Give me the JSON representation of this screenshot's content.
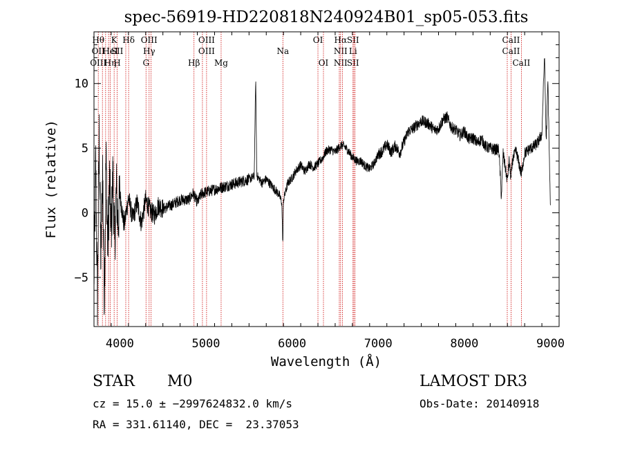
{
  "chart_data": {
    "type": "line",
    "title": "spec-56919-HD220818N240924B01_sp05-053.fits",
    "xlabel": "Wavelength (Å)",
    "ylabel": "Flux (relative)",
    "xlim": [
      3700,
      9100
    ],
    "ylim": [
      -8.8,
      14
    ],
    "xticks": [
      4000,
      5000,
      6000,
      7000,
      8000,
      9000
    ],
    "yticks": [
      -5,
      0,
      5,
      10
    ],
    "grid": false,
    "series": [
      {
        "x": [
          3700,
          3720,
          3740,
          3760,
          3780,
          3800,
          3820,
          3840,
          3860,
          3880,
          3900,
          3920,
          3940,
          3960,
          3980,
          4000,
          4050,
          4100,
          4150,
          4200,
          4250,
          4300,
          4350,
          4400,
          4450,
          4500,
          4600,
          4700,
          4800,
          4850,
          4900,
          4950,
          5000,
          5100,
          5200,
          5300,
          5400,
          5500,
          5560,
          5577,
          5590,
          5650,
          5700,
          5750,
          5800,
          5850,
          5880,
          5893,
          5900,
          5950,
          6000,
          6050,
          6100,
          6150,
          6200,
          6250,
          6300,
          6350,
          6400,
          6450,
          6500,
          6563,
          6600,
          6650,
          6700,
          6750,
          6800,
          6850,
          6900,
          6950,
          7000,
          7050,
          7100,
          7150,
          7200,
          7250,
          7300,
          7350,
          7400,
          7450,
          7500,
          7550,
          7600,
          7650,
          7700,
          7750,
          7800,
          7850,
          7900,
          7950,
          8000,
          8050,
          8100,
          8150,
          8200,
          8250,
          8300,
          8350,
          8400,
          8430,
          8450,
          8498,
          8520,
          8542,
          8560,
          8600,
          8662,
          8700,
          8750,
          8800,
          8850,
          8900,
          8930,
          8950,
          8970,
          8990,
          9000
        ],
        "y": [
          -5.5,
          4.0,
          -7.0,
          6.0,
          -4.0,
          3.5,
          -6.5,
          4.5,
          -3.0,
          2.5,
          -1.5,
          3.0,
          -2.5,
          2.0,
          -1.0,
          1.5,
          -1.0,
          1.2,
          -0.5,
          0.8,
          -0.8,
          1.0,
          0.2,
          -0.2,
          0.6,
          0.3,
          0.6,
          1.0,
          1.0,
          1.5,
          0.8,
          1.5,
          1.6,
          1.8,
          2.0,
          2.2,
          2.4,
          2.6,
          2.8,
          10.5,
          2.9,
          2.3,
          2.6,
          2.2,
          1.8,
          1.4,
          0.8,
          -2.5,
          1.0,
          2.3,
          2.7,
          3.3,
          3.7,
          3.2,
          3.8,
          3.5,
          3.8,
          4.2,
          4.8,
          4.9,
          4.7,
          5.2,
          5.2,
          4.8,
          4.3,
          4.0,
          4.0,
          3.6,
          3.4,
          3.8,
          4.5,
          4.8,
          5.3,
          4.7,
          5.2,
          4.6,
          5.5,
          6.3,
          6.5,
          6.8,
          7.1,
          7.0,
          6.8,
          6.4,
          6.5,
          7.2,
          7.4,
          6.6,
          6.4,
          6.0,
          6.3,
          5.7,
          5.8,
          5.4,
          5.7,
          5.1,
          5.0,
          4.9,
          4.9,
          1.2,
          4.6,
          2.5,
          4.0,
          2.6,
          4.1,
          4.8,
          3.0,
          4.6,
          4.9,
          5.1,
          5.4,
          6.1,
          12.2,
          5.5,
          10.2,
          3.2,
          0.2
        ]
      }
    ],
    "line_markers": [
      {
        "w": 3750,
        "labels": [
          "Hθ",
          "OII",
          "OIII"
        ]
      },
      {
        "w": 3798,
        "labels": []
      },
      {
        "w": 3835,
        "labels": []
      },
      {
        "w": 3869,
        "labels": []
      },
      {
        "w": 3889,
        "labels": [
          "",
          "HeI",
          "Hη"
        ]
      },
      {
        "w": 3934,
        "labels": [
          "K"
        ]
      },
      {
        "w": 3969,
        "labels": [
          "",
          "SII",
          "H"
        ]
      },
      {
        "w": 4102,
        "labels": [
          "Hδ"
        ]
      },
      {
        "w": 4069,
        "labels": []
      },
      {
        "w": 4304,
        "labels": [
          "",
          "",
          "G"
        ]
      },
      {
        "w": 4340,
        "labels": [
          "OIII",
          "Hγ"
        ]
      },
      {
        "w": 4363,
        "labels": []
      },
      {
        "w": 4861,
        "labels": [
          "",
          "",
          "Hβ"
        ]
      },
      {
        "w": 4959,
        "labels": []
      },
      {
        "w": 5007,
        "labels": [
          "OIII",
          "OIII"
        ]
      },
      {
        "w": 5176,
        "labels": [
          "",
          "",
          "Mg"
        ]
      },
      {
        "w": 5893,
        "labels": [
          "",
          "Na"
        ]
      },
      {
        "w": 6300,
        "labels": [
          "OI"
        ]
      },
      {
        "w": 6364,
        "labels": [
          "",
          "",
          "OI"
        ]
      },
      {
        "w": 6548,
        "labels": []
      },
      {
        "w": 6563,
        "labels": [
          "Hα",
          "NII",
          "NII"
        ]
      },
      {
        "w": 6584,
        "labels": []
      },
      {
        "w": 6707,
        "labels": [
          "SII",
          "Li",
          "SII"
        ]
      },
      {
        "w": 6717,
        "labels": []
      },
      {
        "w": 6731,
        "labels": []
      },
      {
        "w": 8498,
        "labels": []
      },
      {
        "w": 8542,
        "labels": [
          "CaII",
          "CaII"
        ]
      },
      {
        "w": 8662,
        "labels": [
          "",
          "",
          "CaII"
        ]
      }
    ]
  },
  "info": {
    "class": "STAR",
    "subclass": "M0",
    "survey": "LAMOST DR3",
    "cz": "cz = 15.0 ± −2997624832.0 km/s",
    "obs_date": "Obs-Date: 20140918",
    "radec": "RA = 331.61140, DEC =  23.37053"
  },
  "colors": {
    "line_marker": "#cc0000",
    "spectrum": "#000000"
  }
}
